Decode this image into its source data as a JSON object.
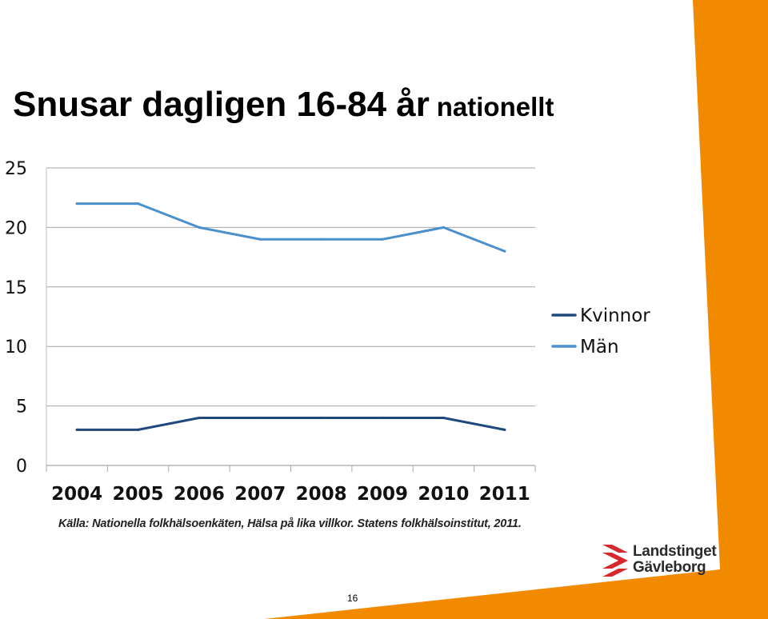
{
  "slide": {
    "title_main": "Snusar dagligen 16-84 år",
    "title_tail": "nationellt",
    "source": "Källa: Nationella folkhälsoenkäten, Hälsa på lika villkor. Statens folkhälsoinstitut, 2011.",
    "page_number": "16",
    "accent_color": "#F28A00"
  },
  "logo": {
    "line1": "Landstinget",
    "line2": "Gävleborg",
    "mark_color": "#D7282F",
    "mark_icon": "landstinget-chevron-logo-icon"
  },
  "chart_data": {
    "type": "line",
    "categories": [
      "2004",
      "2005",
      "2006",
      "2007",
      "2008",
      "2009",
      "2010",
      "2011"
    ],
    "series": [
      {
        "name": "Kvinnor",
        "color": "#1F497D",
        "values": [
          3,
          3,
          4,
          4,
          4,
          4,
          4,
          3
        ]
      },
      {
        "name": "Män",
        "color": "#4A90CC",
        "values": [
          22,
          22,
          20,
          19,
          19,
          19,
          20,
          18
        ]
      }
    ],
    "yticks": [
      0,
      5,
      10,
      15,
      20,
      25
    ],
    "ylim": [
      0,
      25
    ],
    "grid": true,
    "legend": "right"
  }
}
